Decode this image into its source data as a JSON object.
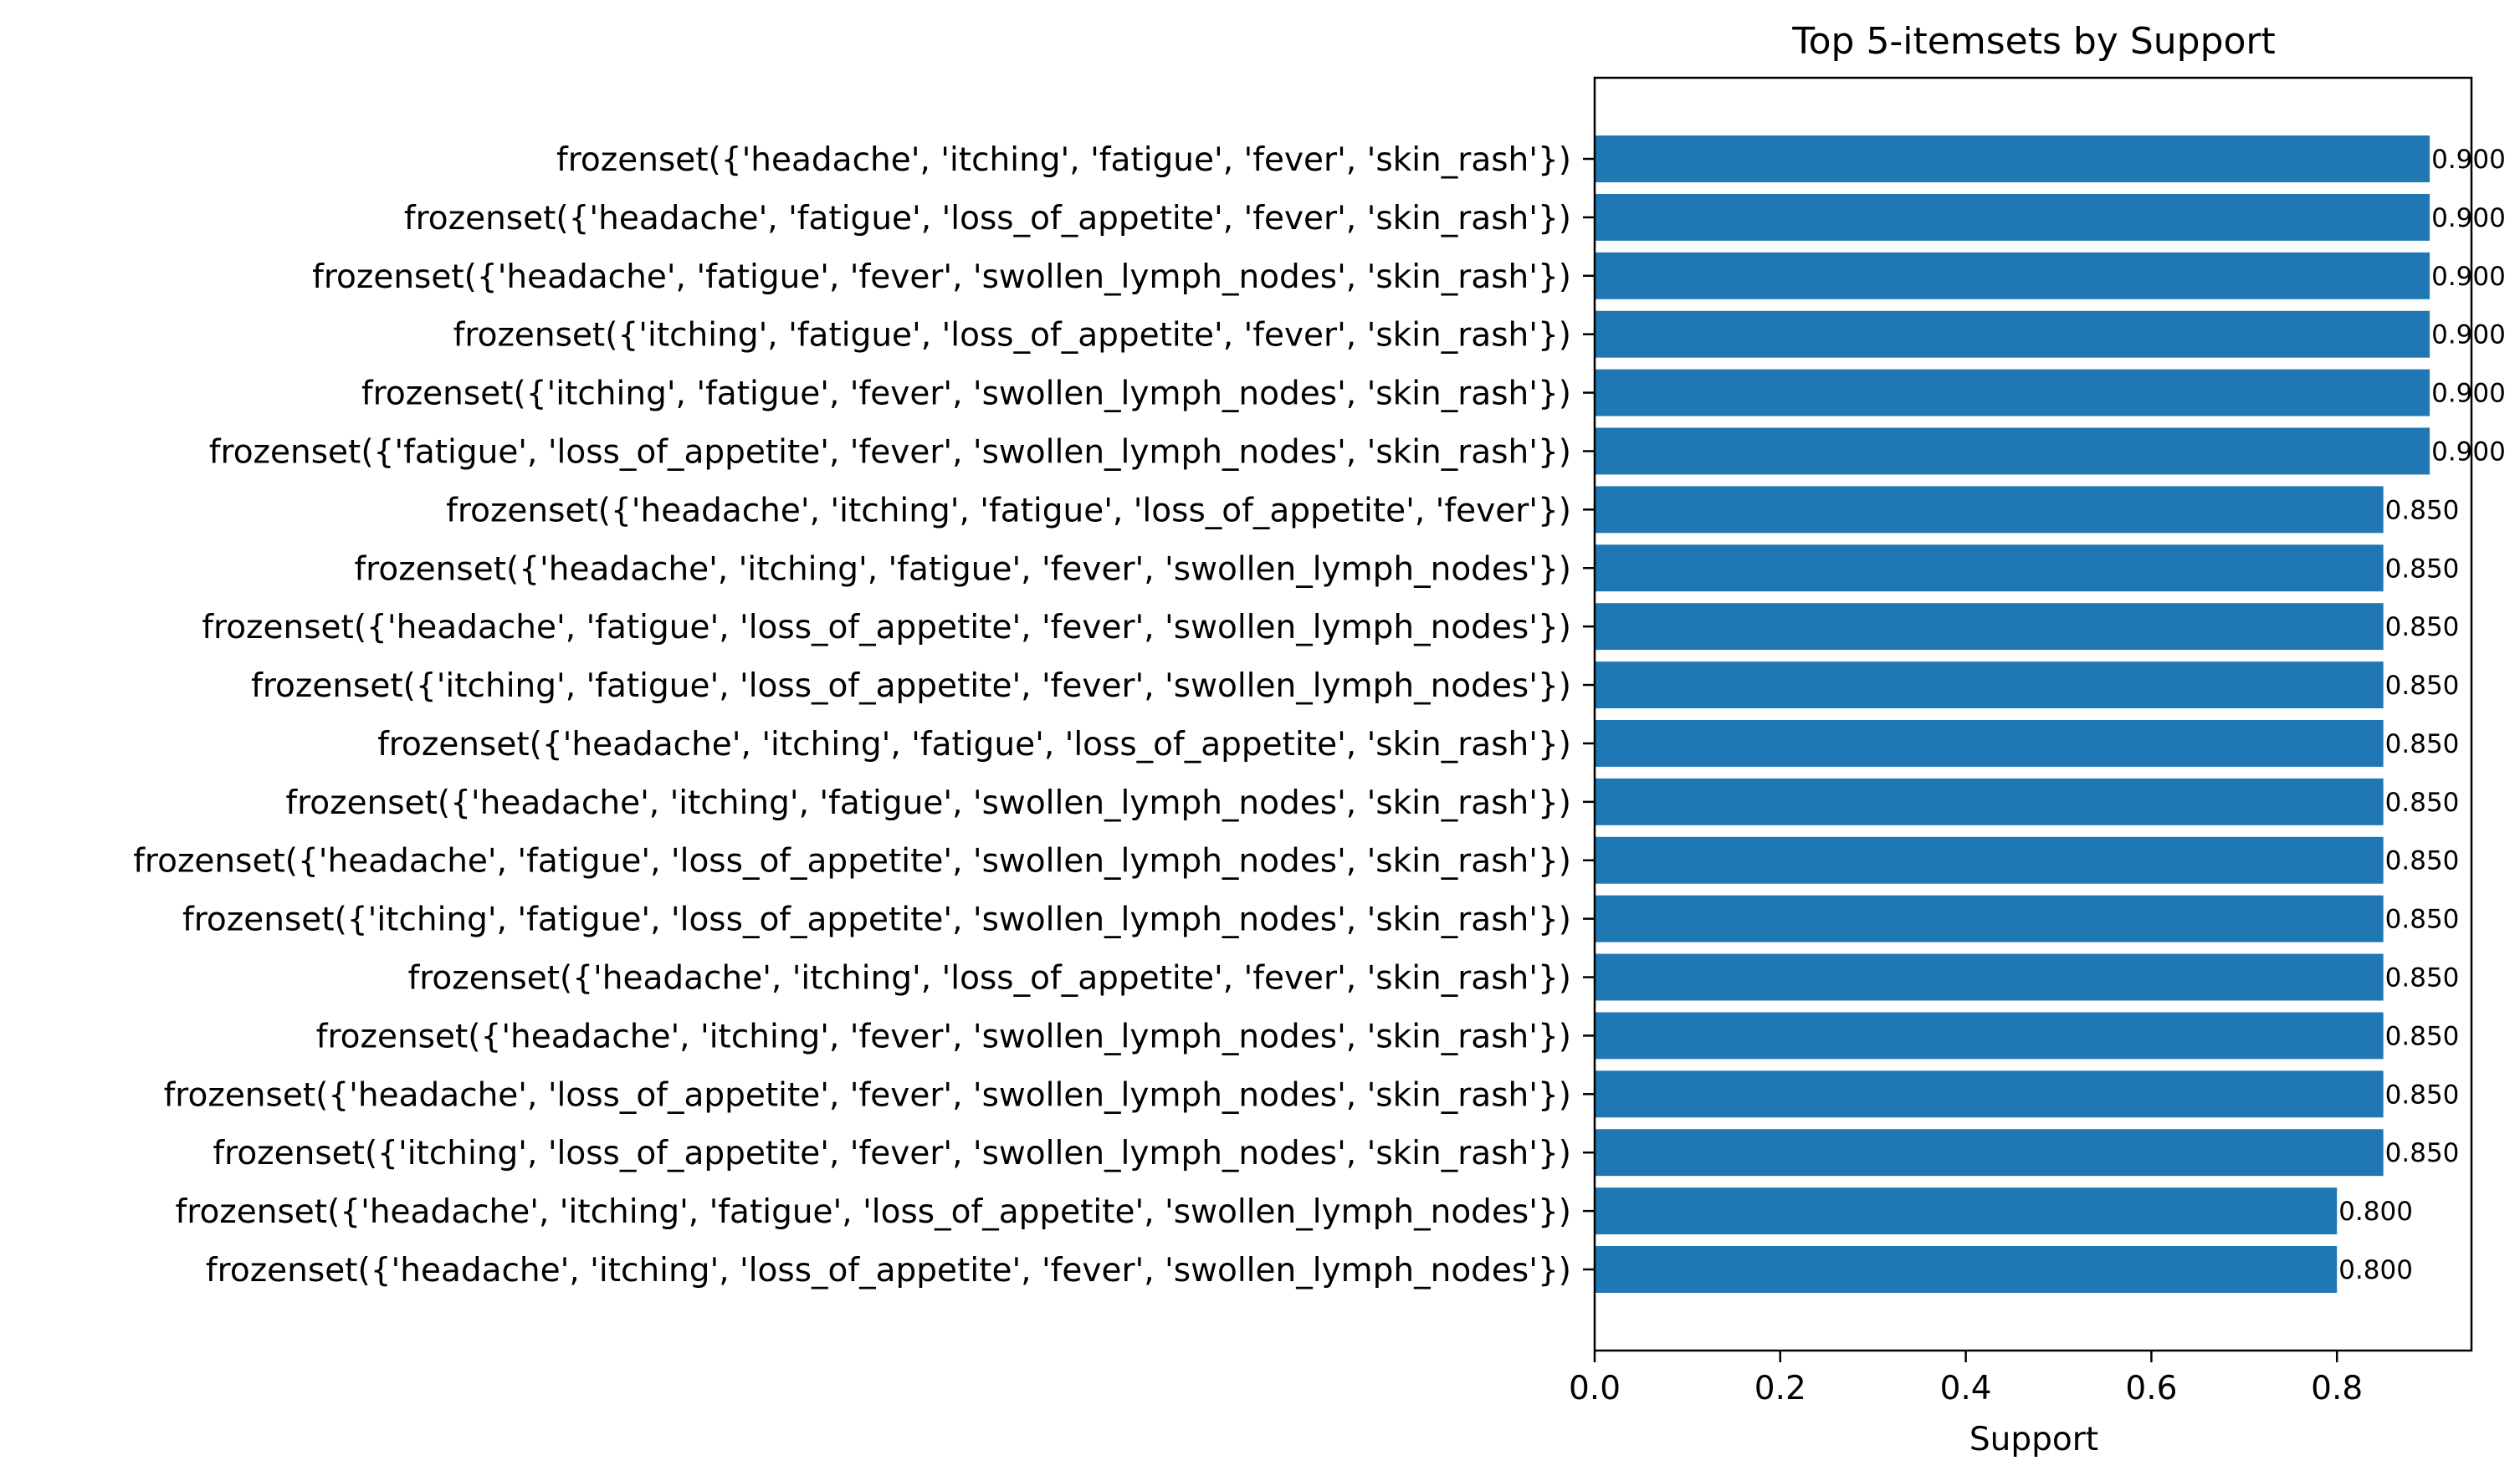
{
  "chart_data": {
    "type": "bar",
    "orientation": "horizontal",
    "title": "Top 5-itemsets by Support",
    "xlabel": "Support",
    "ylabel": "",
    "xlim": [
      0,
      0.945
    ],
    "xticks": [
      "0.0",
      "0.2",
      "0.4",
      "0.6",
      "0.8"
    ],
    "grid": false,
    "color": "#1f77b4",
    "categories": [
      "frozenset({'headache', 'itching', 'fatigue', 'fever', 'skin_rash'})",
      "frozenset({'headache', 'fatigue', 'loss_of_appetite', 'fever', 'skin_rash'})",
      "frozenset({'headache', 'fatigue', 'fever', 'swollen_lymph_nodes', 'skin_rash'})",
      "frozenset({'itching', 'fatigue', 'loss_of_appetite', 'fever', 'skin_rash'})",
      "frozenset({'itching', 'fatigue', 'fever', 'swollen_lymph_nodes', 'skin_rash'})",
      "frozenset({'fatigue', 'loss_of_appetite', 'fever', 'swollen_lymph_nodes', 'skin_rash'})",
      "frozenset({'headache', 'itching', 'fatigue', 'loss_of_appetite', 'fever'})",
      "frozenset({'headache', 'itching', 'fatigue', 'fever', 'swollen_lymph_nodes'})",
      "frozenset({'headache', 'fatigue', 'loss_of_appetite', 'fever', 'swollen_lymph_nodes'})",
      "frozenset({'itching', 'fatigue', 'loss_of_appetite', 'fever', 'swollen_lymph_nodes'})",
      "frozenset({'headache', 'itching', 'fatigue', 'loss_of_appetite', 'skin_rash'})",
      "frozenset({'headache', 'itching', 'fatigue', 'swollen_lymph_nodes', 'skin_rash'})",
      "frozenset({'headache', 'fatigue', 'loss_of_appetite', 'swollen_lymph_nodes', 'skin_rash'})",
      "frozenset({'itching', 'fatigue', 'loss_of_appetite', 'swollen_lymph_nodes', 'skin_rash'})",
      "frozenset({'headache', 'itching', 'loss_of_appetite', 'fever', 'skin_rash'})",
      "frozenset({'headache', 'itching', 'fever', 'swollen_lymph_nodes', 'skin_rash'})",
      "frozenset({'headache', 'loss_of_appetite', 'fever', 'swollen_lymph_nodes', 'skin_rash'})",
      "frozenset({'itching', 'loss_of_appetite', 'fever', 'swollen_lymph_nodes', 'skin_rash'})",
      "frozenset({'headache', 'itching', 'fatigue', 'loss_of_appetite', 'swollen_lymph_nodes'})",
      "frozenset({'headache', 'itching', 'loss_of_appetite', 'fever', 'swollen_lymph_nodes'})"
    ],
    "values": [
      0.9,
      0.9,
      0.9,
      0.9,
      0.9,
      0.9,
      0.85,
      0.85,
      0.85,
      0.85,
      0.85,
      0.85,
      0.85,
      0.85,
      0.85,
      0.85,
      0.85,
      0.85,
      0.8,
      0.8
    ],
    "value_labels": [
      "0.900",
      "0.900",
      "0.900",
      "0.900",
      "0.900",
      "0.900",
      "0.850",
      "0.850",
      "0.850",
      "0.850",
      "0.850",
      "0.850",
      "0.850",
      "0.850",
      "0.850",
      "0.850",
      "0.850",
      "0.850",
      "0.800",
      "0.800"
    ]
  }
}
